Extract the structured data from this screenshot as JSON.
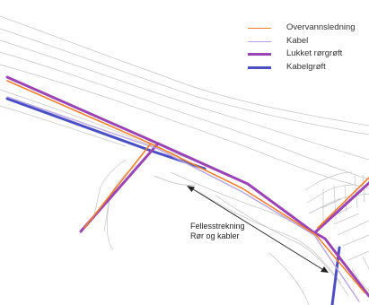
{
  "legend": {
    "items": [
      {
        "label": "Overvannsledning",
        "color": "#f07f2a",
        "style": "thin"
      },
      {
        "label": "Kabel",
        "color": "#b8a4e0",
        "style": "thin"
      },
      {
        "label": "Lukket rørgrøft",
        "color": "#9b44b5",
        "style": "thick"
      },
      {
        "label": "Kabelgrøft",
        "color": "#4a4fc4",
        "style": "thick"
      }
    ]
  },
  "annotation": {
    "line1": "Fellesstrekning",
    "line2": "Rør og kabler"
  },
  "colors": {
    "base_map_lines": "#bdbdbd",
    "annotation_arrow": "#222222"
  }
}
